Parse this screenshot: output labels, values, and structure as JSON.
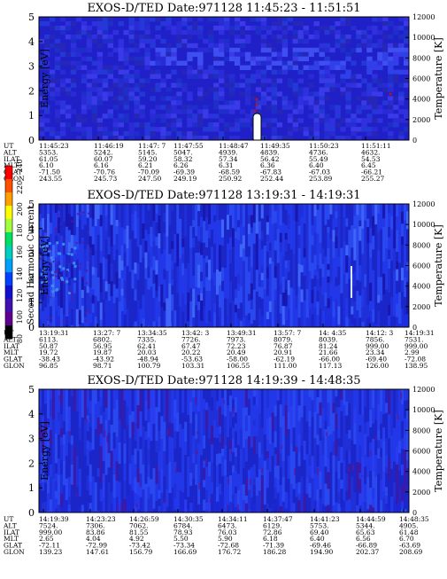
{
  "colorbar": {
    "label": "Second Harmonic Current",
    "ticks": [
      "240",
      "220",
      "200",
      "180",
      "160",
      "140",
      "120",
      "100",
      "80"
    ]
  },
  "chart_data": [
    {
      "type": "heatmap",
      "title": "EXOS-D/TED   Date:971128  11:45:23 - 11:51:51",
      "ylabel": "Energy [eV]",
      "ylabel_right": "Temperature [K]",
      "ylim": [
        0,
        5
      ],
      "y2lim": [
        0,
        12000
      ],
      "yticks": [
        "0",
        "1",
        "2",
        "3",
        "4",
        "5"
      ],
      "y2ticks": [
        "0",
        "2000",
        "4000",
        "6000",
        "8000",
        "10000",
        "12000"
      ],
      "grid": false,
      "background": "#2020c8",
      "orbit_table": {
        "rows": [
          "UT",
          "ALT",
          "ILAT",
          "MLT",
          "GLAT",
          "GLON"
        ],
        "columns": [
          [
            "11:45:23",
            "5353.",
            "61.05",
            "6.10",
            "-71.50",
            "243.55"
          ],
          [
            "11:46:19",
            "5242.",
            "60.07",
            "6.16",
            "-70.76",
            "245.73"
          ],
          [
            "11:47: 7",
            "5145.",
            "59.20",
            "6.21",
            "-70.09",
            "247.50"
          ],
          [
            "11:47:55",
            "5047.",
            "58.32",
            "6.26",
            "-69.39",
            "249.19"
          ],
          [
            "11:48:47",
            "4939.",
            "57.34",
            "6.31",
            "-68.59",
            "250.92"
          ],
          [
            "11:49:35",
            "4839.",
            "56.42",
            "6.36",
            "-67.83",
            "252.44"
          ],
          [
            "11:50:23",
            "4736.",
            "55.49",
            "6.40",
            "-67.03",
            "253.89"
          ],
          [
            "11:51:11",
            "4632.",
            "54.53",
            "6.45",
            "-66.21",
            "255.27"
          ]
        ]
      }
    },
    {
      "type": "heatmap",
      "title": "EXOS-D/TED   Date:971128  13:19:31 - 14:19:31",
      "ylabel": "Energy [eV]",
      "ylabel_right": "Temperature [K]",
      "ylim": [
        0,
        5
      ],
      "y2lim": [
        0,
        12000
      ],
      "yticks": [
        "0",
        "1",
        "2",
        "3",
        "4",
        "5"
      ],
      "y2ticks": [
        "0",
        "2000",
        "4000",
        "6000",
        "8000",
        "10000",
        "12000"
      ],
      "grid": false,
      "background": "#1c2ee0",
      "orbit_table": {
        "rows": [
          "UT",
          "ALT",
          "ILAT",
          "MLT",
          "GLAT",
          "GLON"
        ],
        "columns": [
          [
            "13:19:31",
            "6113.",
            "50.87",
            "19.72",
            "-38.43",
            "96.85"
          ],
          [
            "13:27: 7",
            "6802.",
            "56.95",
            "19.87",
            "-43.92",
            "98.71"
          ],
          [
            "13:34:35",
            "7335.",
            "62.41",
            "20.03",
            "-48.94",
            "100.79"
          ],
          [
            "13:42: 3",
            "7726.",
            "67.47",
            "20.22",
            "-53.63",
            "103.31"
          ],
          [
            "13:49:31",
            "7973.",
            "72.23",
            "20.49",
            "-58.00",
            "106.55"
          ],
          [
            "13:57: 7",
            "8079.",
            "76.87",
            "20.91",
            "-62.19",
            "111.00"
          ],
          [
            "14: 4:35",
            "8039.",
            "81.24",
            "21.66",
            "-66.00",
            "117.13"
          ],
          [
            "14:12: 3",
            "7856.",
            "999.00",
            "23.34",
            "-69.40",
            "126.00"
          ],
          [
            "14:19:31",
            "7531.",
            "999.00",
            "2.99",
            "-72.08",
            "138.95"
          ]
        ]
      }
    },
    {
      "type": "heatmap",
      "title": "EXOS-D/TED   Date:971128  14:19:39 - 14:48:35",
      "ylabel": "Energy [eV]",
      "ylabel_right": "Temperature [K]",
      "ylim": [
        0,
        5
      ],
      "y2lim": [
        0,
        12000
      ],
      "yticks": [
        "0",
        "1",
        "2",
        "3",
        "4",
        "5"
      ],
      "y2ticks": [
        "0",
        "2000",
        "4000",
        "6000",
        "8000",
        "10000",
        "12000"
      ],
      "grid": false,
      "background": "#1c28d8",
      "orbit_table": {
        "rows": [
          "UT",
          "ALT",
          "ILAT",
          "MLT",
          "GLAT",
          "GLON"
        ],
        "columns": [
          [
            "14:19:39",
            "7524.",
            "999.00",
            "2.65",
            "-72.11",
            "139.23"
          ],
          [
            "14:23:23",
            "7306.",
            "83.86",
            "4.04",
            "-72.99",
            "147.61"
          ],
          [
            "14:26:59",
            "7062.",
            "81.55",
            "4.92",
            "-73.42",
            "156.79"
          ],
          [
            "14:30:35",
            "6784.",
            "78.93",
            "5.50",
            "-73.34",
            "166.69"
          ],
          [
            "14:34:11",
            "6473.",
            "76.03",
            "5.90",
            "-72.68",
            "176.72"
          ],
          [
            "14:37:47",
            "6129.",
            "72.86",
            "6.18",
            "-71.39",
            "186.28"
          ],
          [
            "14:41:23",
            "5753.",
            "69.40",
            "6.40",
            "-69.46",
            "194.90"
          ],
          [
            "14:44:59",
            "5344.",
            "65.63",
            "6.56",
            "-66.89",
            "202.37"
          ],
          [
            "14:48:35",
            "4905.",
            "61.48",
            "6.70",
            "-63.69",
            "208.69"
          ]
        ]
      }
    }
  ]
}
